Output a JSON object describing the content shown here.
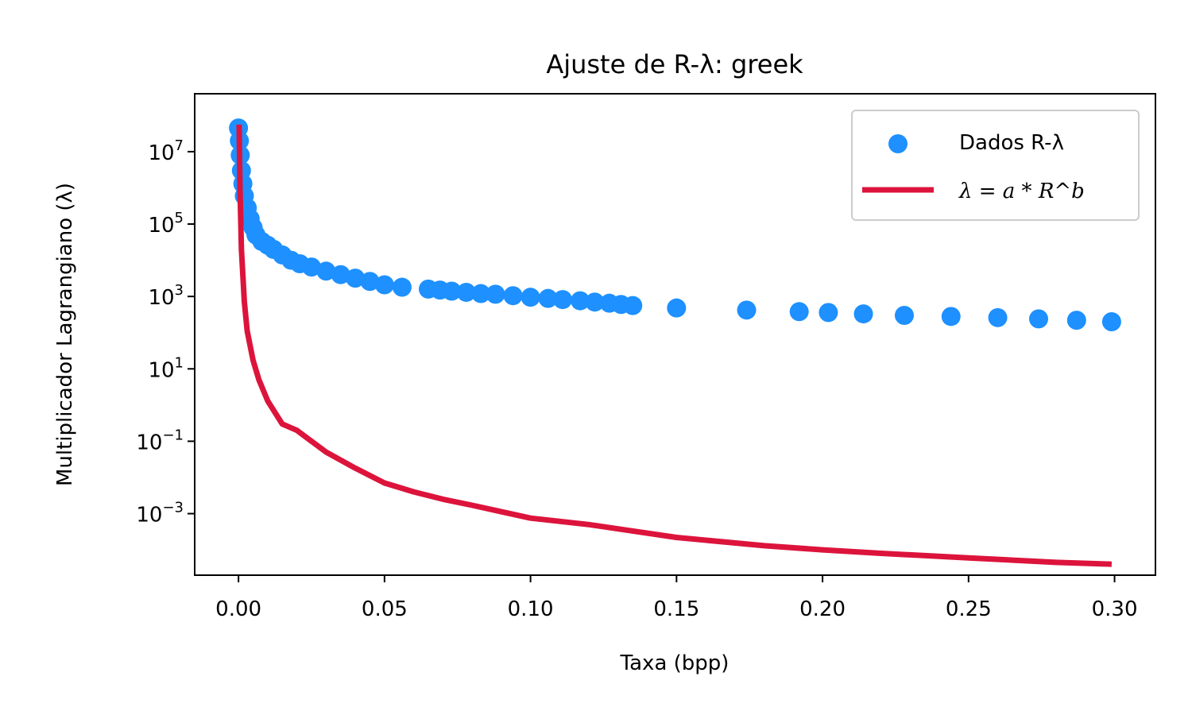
{
  "chart_data": {
    "type": "scatter",
    "title": "Ajuste de R-λ: greek",
    "xlabel": "Taxa (bpp)",
    "ylabel": "Multiplicador Lagrangiano (λ)",
    "xlim": [
      -0.015,
      0.314
    ],
    "xticks": [
      "0.00",
      "0.05",
      "0.10",
      "0.15",
      "0.20",
      "0.25",
      "0.30"
    ],
    "xtick_values": [
      0.0,
      0.05,
      0.1,
      0.15,
      0.2,
      0.25,
      0.3
    ],
    "yscale": "log",
    "ylim_log10": [
      -4.7,
      8.6
    ],
    "ytick_exponents": [
      7,
      5,
      3,
      1,
      -1,
      -3
    ],
    "ytick_base": "10",
    "grid": false,
    "legend_position": "upper right",
    "colors": {
      "data": "#1E90FF",
      "fit": "#DC143C"
    },
    "series": [
      {
        "name": "Dados R-λ",
        "kind": "scatter",
        "x": [
          0.0,
          0.0003,
          0.0006,
          0.001,
          0.0015,
          0.002,
          0.003,
          0.004,
          0.005,
          0.006,
          0.008,
          0.01,
          0.012,
          0.015,
          0.018,
          0.021,
          0.025,
          0.03,
          0.035,
          0.04,
          0.045,
          0.05,
          0.056,
          0.065,
          0.069,
          0.073,
          0.078,
          0.083,
          0.088,
          0.094,
          0.1,
          0.106,
          0.111,
          0.117,
          0.122,
          0.127,
          0.131,
          0.135,
          0.15,
          0.174,
          0.192,
          0.202,
          0.214,
          0.228,
          0.244,
          0.26,
          0.274,
          0.287,
          0.299
        ],
        "y": [
          45000000,
          20000000,
          8000000,
          3000000,
          1300000,
          600000,
          280000,
          140000,
          80000,
          50000,
          33000,
          26000,
          20000,
          14000,
          10000,
          8000,
          6500,
          5000,
          4000,
          3200,
          2600,
          2100,
          1800,
          1600,
          1500,
          1400,
          1300,
          1200,
          1150,
          1050,
          950,
          880,
          820,
          760,
          700,
          650,
          600,
          560,
          480,
          420,
          380,
          360,
          330,
          300,
          280,
          260,
          240,
          220,
          200
        ]
      },
      {
        "name": "λ = a * R^b",
        "kind": "line",
        "x": [
          0.0002,
          0.0005,
          0.001,
          0.002,
          0.003,
          0.005,
          0.007,
          0.01,
          0.015,
          0.02,
          0.03,
          0.04,
          0.05,
          0.06,
          0.07,
          0.08,
          0.1,
          0.12,
          0.15,
          0.18,
          0.2,
          0.22,
          0.25,
          0.28,
          0.299
        ],
        "y": [
          56000000,
          1000000,
          20000,
          700,
          110,
          17,
          5,
          1.3,
          0.3,
          0.2,
          0.05,
          0.018,
          0.007,
          0.004,
          0.0025,
          0.0017,
          0.00075,
          0.0005,
          0.00022,
          0.00013,
          0.0001,
          8e-05,
          6e-05,
          4.5e-05,
          4e-05
        ]
      }
    ]
  }
}
